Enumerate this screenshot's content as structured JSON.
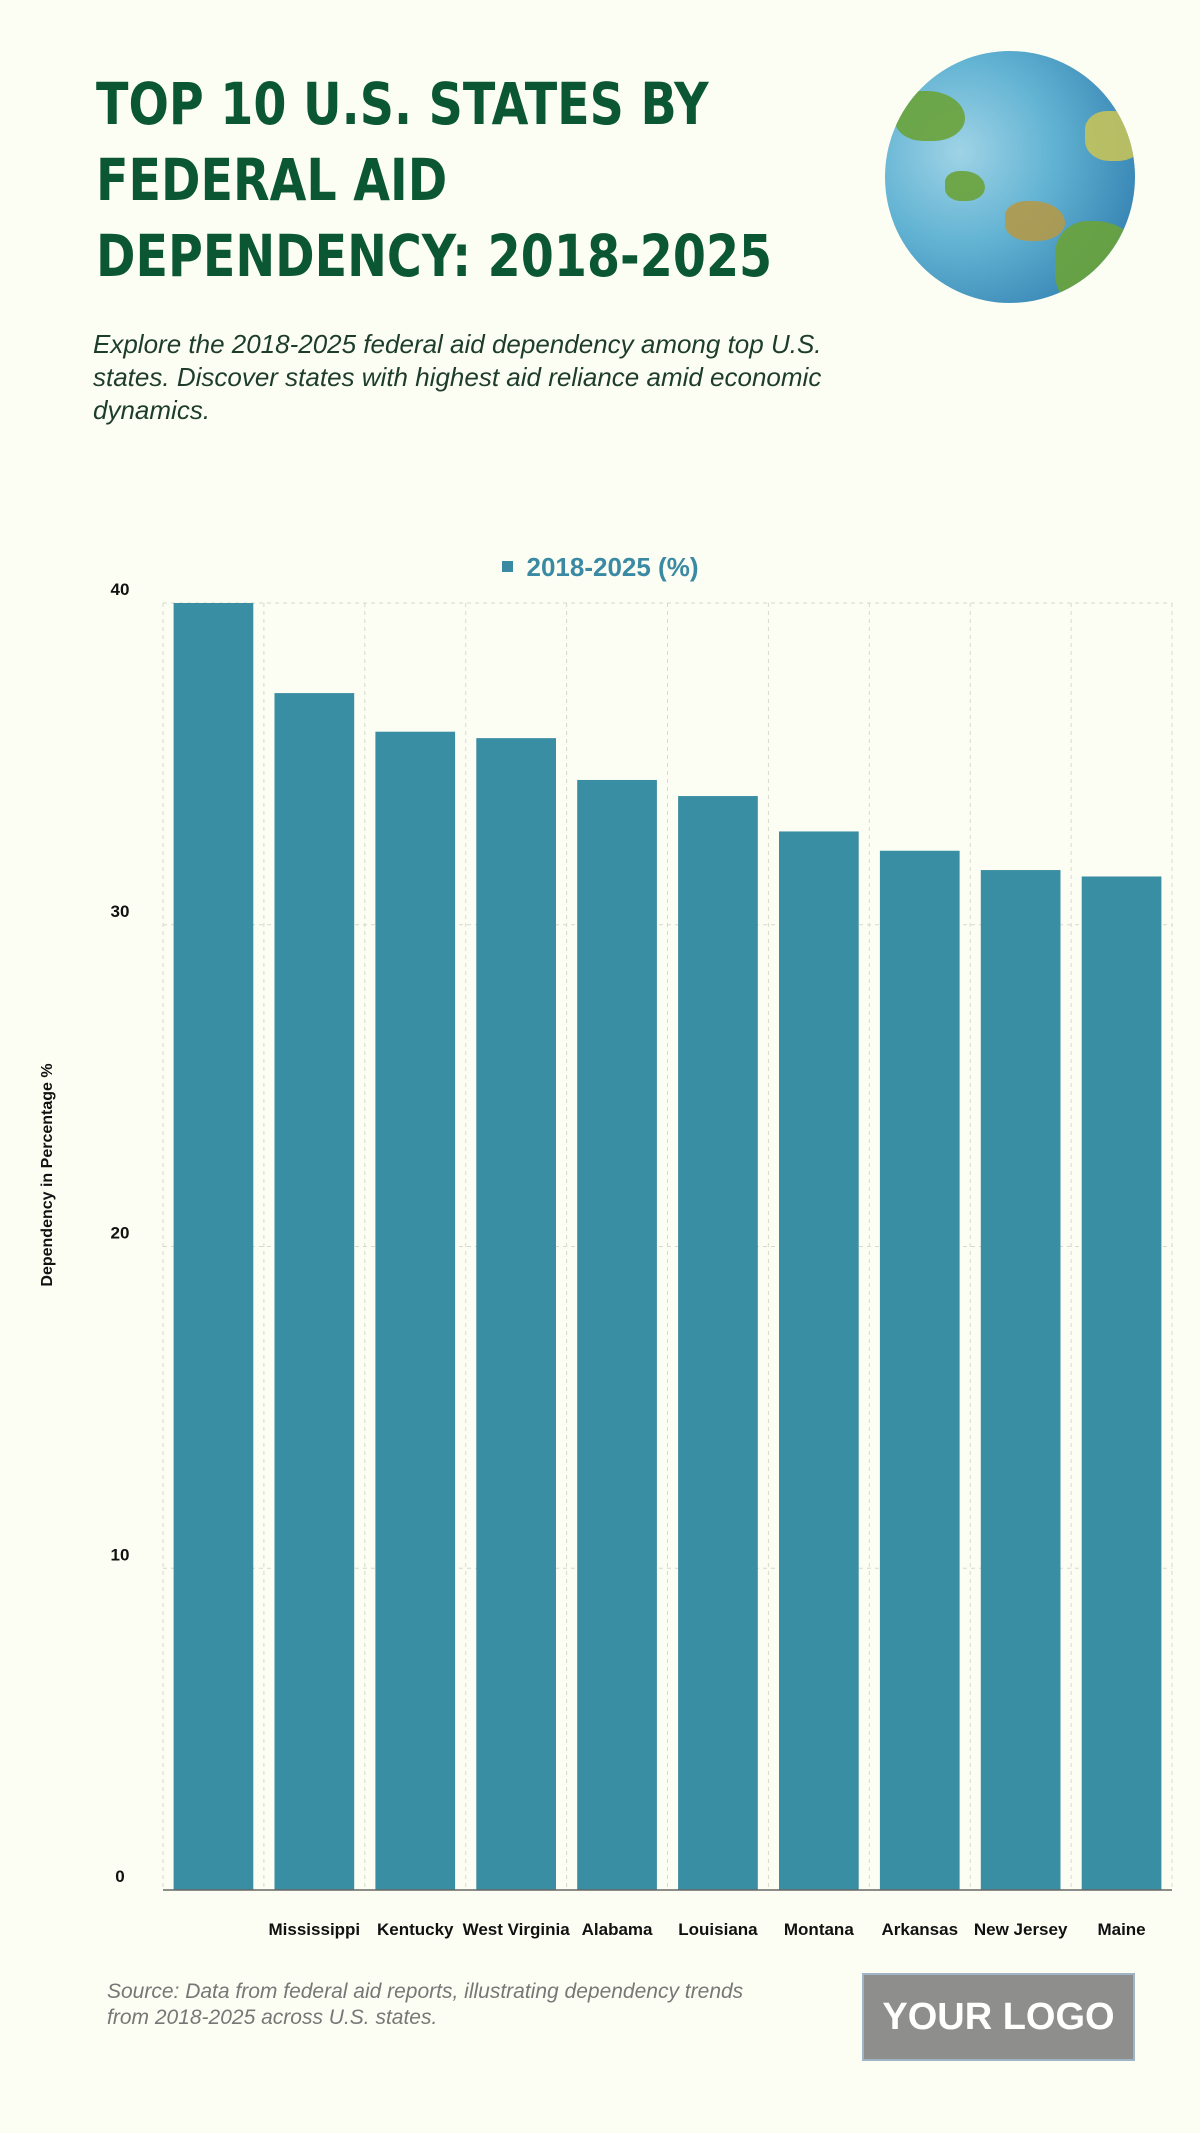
{
  "header": {
    "title": "TOP 10 U.S. STATES BY FEDERAL AID DEPENDENCY: 2018-2025",
    "subtitle": "Explore the 2018-2025 federal aid dependency among top U.S. states. Discover states with highest aid reliance amid economic dynamics."
  },
  "footer": {
    "source": "Source: Data from federal aid reports, illustrating dependency trends from 2018-2025 across U.S. states.",
    "logo": "YOUR LOGO"
  },
  "chart_data": {
    "type": "bar",
    "title": "",
    "legend": [
      "2018-2025 (%)"
    ],
    "legend_position": "top-center",
    "xlabel": "",
    "ylabel": "Dependency in Percentage %",
    "ylim": [
      0,
      40
    ],
    "yticks": [
      0,
      10,
      20,
      30,
      40
    ],
    "grid": true,
    "categories": [
      "",
      "Mississippi",
      "Kentucky",
      "West Virginia",
      "Alabama",
      "Louisiana",
      "Montana",
      "Arkansas",
      "New Jersey",
      "Maine"
    ],
    "series": [
      {
        "name": "2018-2025 (%)",
        "values": [
          40,
          37.2,
          36.0,
          35.8,
          34.5,
          34.0,
          32.9,
          32.3,
          31.7,
          31.5
        ],
        "color": "#3a8ea3"
      }
    ]
  }
}
